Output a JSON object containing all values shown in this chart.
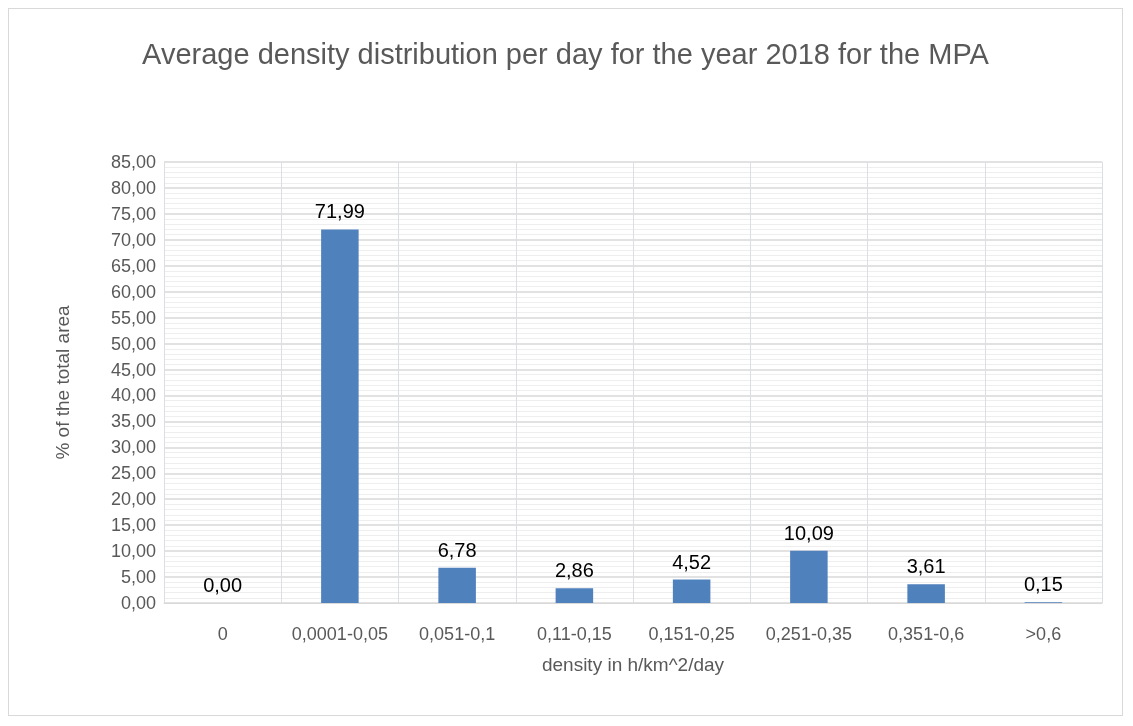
{
  "chart_data": {
    "type": "bar",
    "title": "Average density distribution per day for the year 2018 for the MPA",
    "xlabel": "density in h/km^2/day",
    "ylabel": "% of the total area",
    "categories": [
      "0",
      "0,0001-0,05",
      "0,051-0,1",
      "0,11-0,15",
      "0,151-0,25",
      "0,251-0,35",
      "0,351-0,6",
      ">0,6"
    ],
    "values": [
      0,
      71.99,
      6.78,
      2.86,
      4.52,
      10.09,
      3.61,
      0.15
    ],
    "value_labels": [
      "0,00",
      "71,99",
      "6,78",
      "2,86",
      "4,52",
      "10,09",
      "3,61",
      "0,15"
    ],
    "color": "#4f81bd",
    "ylim": [
      0,
      85
    ],
    "yticks": [
      {
        "value": 0,
        "label": "0,00"
      },
      {
        "value": 5,
        "label": "5,00"
      },
      {
        "value": 10,
        "label": "10,00"
      },
      {
        "value": 15,
        "label": "15,00"
      },
      {
        "value": 20,
        "label": "20,00"
      },
      {
        "value": 25,
        "label": "25,00"
      },
      {
        "value": 30,
        "label": "30,00"
      },
      {
        "value": 35,
        "label": "35,00"
      },
      {
        "value": 40,
        "label": "40,00"
      },
      {
        "value": 45,
        "label": "45,00"
      },
      {
        "value": 50,
        "label": "50,00"
      },
      {
        "value": 55,
        "label": "55,00"
      },
      {
        "value": 60,
        "label": "60,00"
      },
      {
        "value": 65,
        "label": "65,00"
      },
      {
        "value": 70,
        "label": "70,00"
      },
      {
        "value": 75,
        "label": "75,00"
      },
      {
        "value": 80,
        "label": "80,00"
      },
      {
        "value": 85,
        "label": "85,00"
      }
    ],
    "grid": true
  }
}
